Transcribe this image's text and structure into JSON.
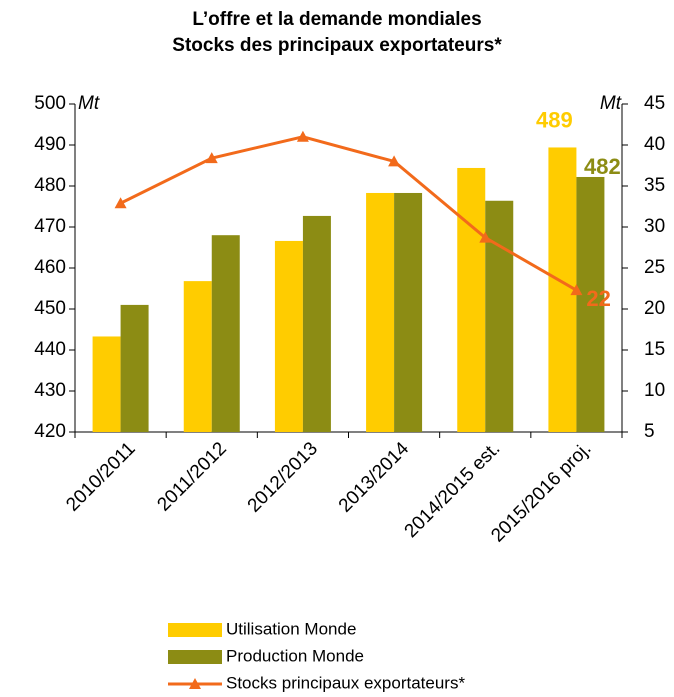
{
  "chart_data": {
    "type": "bar",
    "title": "L’offre et la demande mondiales",
    "subtitle": "Stocks des principaux exportateurs*",
    "y_label": "Mt",
    "y2_label": "Mt",
    "categories": [
      "2010/2011",
      "2011/2012",
      "2012/2013",
      "2013/2014",
      "2014/2015 est.",
      "2015/2016 proj."
    ],
    "series": [
      {
        "name": "Utilisation Monde",
        "color": "#ffcc00",
        "type": "bar",
        "values": [
          443.3,
          456.8,
          466.6,
          478.3,
          484.4,
          489.4
        ],
        "value_labels": [
          null,
          null,
          null,
          null,
          null,
          "489"
        ]
      },
      {
        "name": "Production Monde",
        "color": "#8c8c14",
        "type": "bar",
        "values": [
          451.0,
          468.0,
          472.7,
          478.3,
          476.4,
          482.2
        ],
        "value_labels": [
          null,
          null,
          null,
          null,
          null,
          "482"
        ]
      },
      {
        "name": "Stocks principaux exportateurs*",
        "color": "#f26a1b",
        "type": "line",
        "axis": "y2",
        "values": [
          32.9,
          38.4,
          41.0,
          38.0,
          28.7,
          22.3
        ],
        "value_labels": [
          null,
          null,
          null,
          null,
          null,
          "22"
        ]
      }
    ],
    "ylim": [
      420,
      500
    ],
    "yticks": [
      420,
      430,
      440,
      450,
      460,
      470,
      480,
      490,
      500
    ],
    "y2lim": [
      5,
      45
    ],
    "y2ticks": [
      5,
      10,
      15,
      20,
      25,
      30,
      35,
      40,
      45
    ]
  }
}
